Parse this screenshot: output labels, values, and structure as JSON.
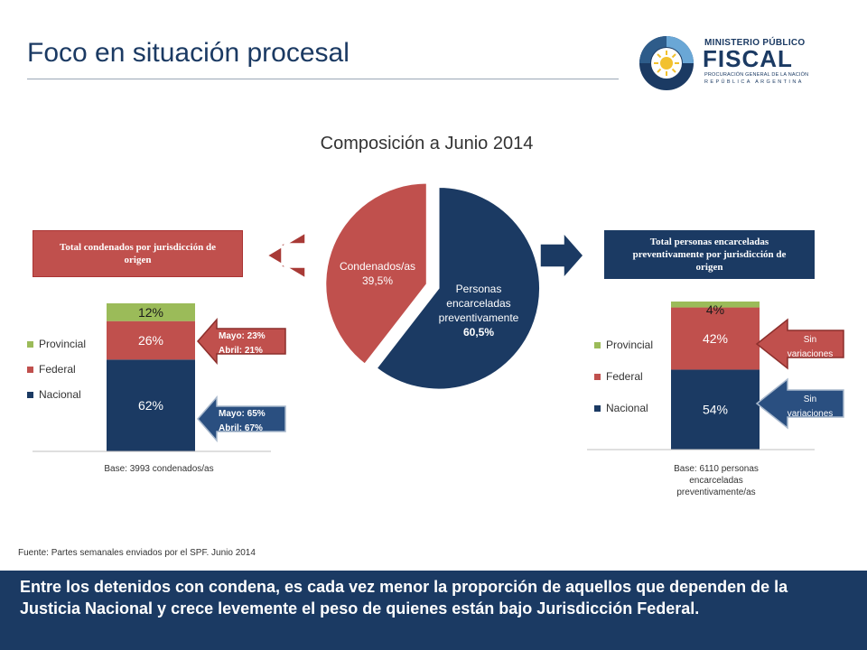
{
  "slide": {
    "title": "Foco en situación procesal"
  },
  "logo": {
    "line1": "MINISTERIO PÚBLICO",
    "line2": "FISCAL",
    "line3": "PROCURACIÓN GENERAL DE LA NACIÓN",
    "line4": "REPÚBLICA ARGENTINA"
  },
  "colors": {
    "navy": "#1b3a63",
    "red": "#c0504d",
    "green": "#9bbb59"
  },
  "chart_data": [
    {
      "type": "pie",
      "title": "Composición a Junio 2014",
      "slices": [
        {
          "label": "Personas encarceladas preventivamente",
          "value": 60.5,
          "value_label": "60,5%",
          "color": "#1b3a63"
        },
        {
          "label": "Condenados/as",
          "value": 39.5,
          "value_label": "39,5%",
          "color": "#c0504d"
        }
      ]
    },
    {
      "type": "bar",
      "stacked": true,
      "header": "Total condenados por jurisdicción de origen",
      "base_label": "Base: 3993 condenados/as",
      "series": [
        {
          "name": "Nacional",
          "value": 62,
          "label": "62%",
          "color": "#1b3a63"
        },
        {
          "name": "Federal",
          "value": 26,
          "label": "26%",
          "color": "#c0504d"
        },
        {
          "name": "Provincial",
          "value": 12,
          "label": "12%",
          "color": "#9bbb59"
        }
      ],
      "annotations": [
        {
          "target": "Federal",
          "lines": [
            "Mayo: 23%",
            "Abril: 21%"
          ]
        },
        {
          "target": "Nacional",
          "lines": [
            "Mayo: 65%",
            "Abril: 67%"
          ]
        }
      ]
    },
    {
      "type": "bar",
      "stacked": true,
      "header": "Total personas encarceladas preventivamente por jurisdicción de origen",
      "base_label": "Base: 6110 personas encarceladas preventivamente/as",
      "series": [
        {
          "name": "Nacional",
          "value": 54,
          "label": "54%",
          "color": "#1b3a63"
        },
        {
          "name": "Federal",
          "value": 42,
          "label": "42%",
          "color": "#c0504d"
        },
        {
          "name": "Provincial",
          "value": 4,
          "label": "4%",
          "color": "#9bbb59"
        }
      ],
      "annotations": [
        {
          "target": "Federal",
          "lines": [
            "Sin",
            "variaciones"
          ]
        },
        {
          "target": "Nacional",
          "lines": [
            "Sin",
            "variaciones"
          ]
        }
      ]
    }
  ],
  "legend": [
    "Provincial",
    "Federal",
    "Nacional"
  ],
  "pie_labels": {
    "condenados_line1": "Condenados/as",
    "condenados_line2": "39,5%",
    "preventivos_line1": "Personas",
    "preventivos_line2": "encarceladas",
    "preventivos_line3": "preventivamente",
    "preventivos_line4": "60,5%"
  },
  "source": "Fuente: Partes semanales enviados por el SPF. Junio 2014",
  "conclusion": "Entre los detenidos con condena, es cada vez menor la proporción de aquellos que dependen de la Justicia Nacional y crece levemente el peso de quienes están bajo Jurisdicción Federal."
}
